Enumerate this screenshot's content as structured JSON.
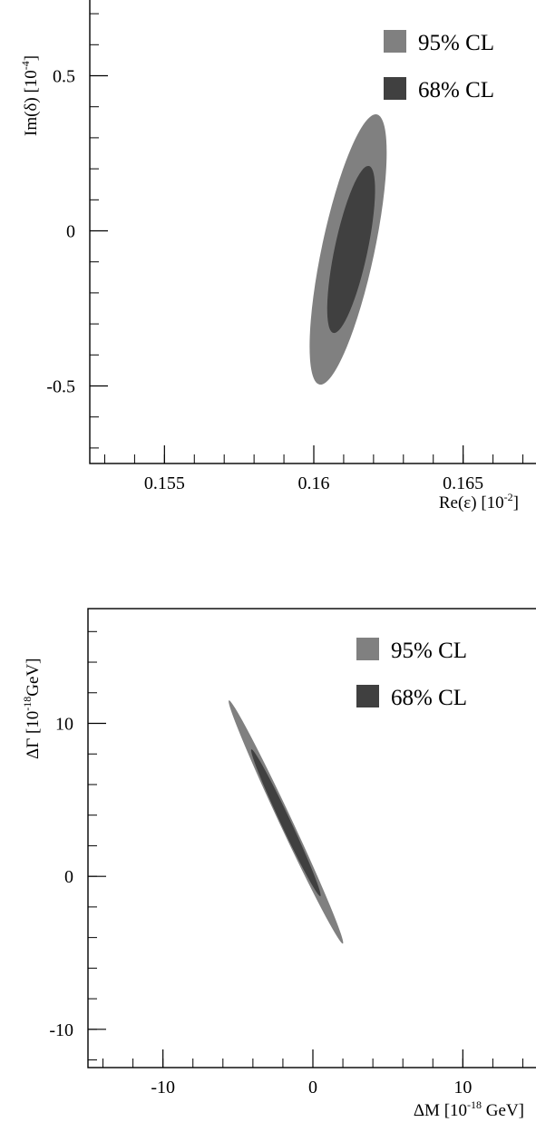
{
  "chart_data": [
    {
      "type": "contour",
      "xlabel": "Re(ε)  [10",
      "xlabel_exp": "-2",
      "xlabel_end": "]",
      "ylabel": "Im(δ)  [10",
      "ylabel_exp": "-4",
      "ylabel_end": "]",
      "xlim": [
        0.1525,
        0.1675
      ],
      "ylim": [
        -0.75,
        0.75
      ],
      "xticks": [
        0.155,
        0.16,
        0.165
      ],
      "xtick_labels": [
        "0.155",
        "0.16",
        "0.165"
      ],
      "yticks": [
        -0.5,
        0,
        0.5
      ],
      "ytick_labels": [
        "-0.5",
        "0",
        "0.5"
      ],
      "legend_position": "top-right",
      "series": [
        {
          "name": "95% CL",
          "color": "#808080",
          "center": [
            0.16115,
            -0.06
          ],
          "half_width_x": 0.00088,
          "half_height_y": 0.445,
          "tilt_deg": 12
        },
        {
          "name": "68% CL",
          "color": "#404040",
          "center": [
            0.16125,
            -0.06
          ],
          "half_width_x": 0.00055,
          "half_height_y": 0.275,
          "tilt_deg": 12
        }
      ]
    },
    {
      "type": "contour",
      "xlabel": "ΔM [10",
      "xlabel_exp": "-18",
      "xlabel_end": " GeV]",
      "ylabel": "ΔΓ [10",
      "ylabel_exp": "-18",
      "ylabel_end": "GeV]",
      "xlim": [
        -15,
        15
      ],
      "ylim": [
        -12.5,
        17.5
      ],
      "xticks": [
        -10,
        0,
        10
      ],
      "xtick_labels": [
        "-10",
        "0",
        "10"
      ],
      "yticks": [
        -10,
        0,
        10
      ],
      "ytick_labels": [
        "-10",
        "0",
        "10"
      ],
      "legend_position": "top-right",
      "series": [
        {
          "name": "95% CL",
          "color": "#808080",
          "p1": [
            -5.6,
            11.5
          ],
          "p2": [
            2.0,
            -4.4
          ],
          "half_width": 0.42
        },
        {
          "name": "68% CL",
          "color": "#404040",
          "p1": [
            -4.1,
            8.3
          ],
          "p2": [
            0.5,
            -1.3
          ],
          "half_width": 0.33
        }
      ]
    }
  ]
}
